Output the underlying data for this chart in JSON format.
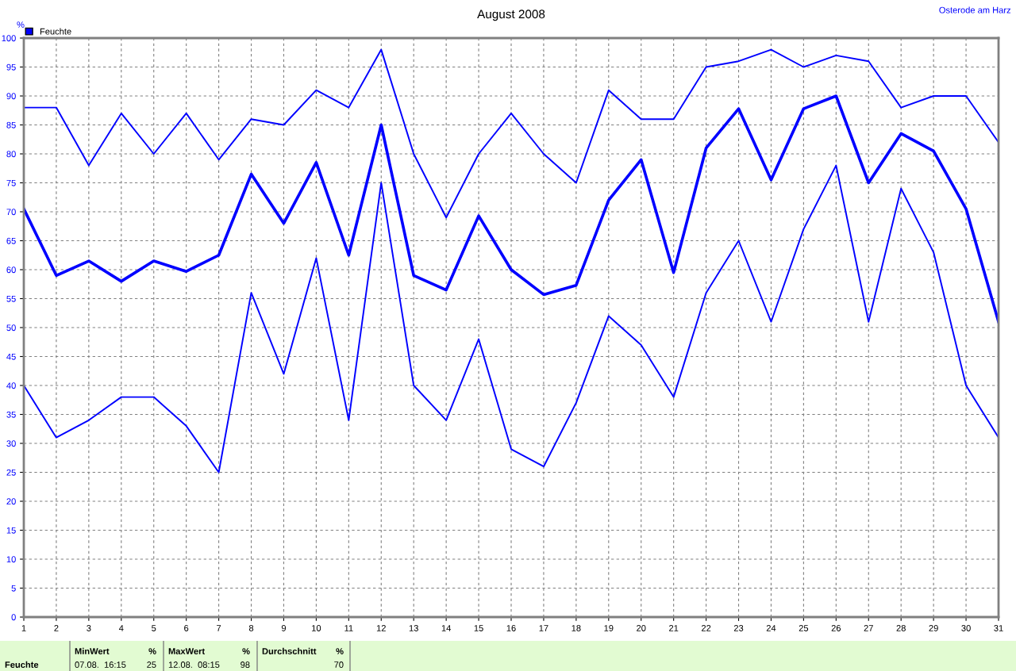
{
  "chart_data": {
    "type": "line",
    "title": "August 2008",
    "subtitle": "Osterode am Harz",
    "ylabel": "%",
    "x": [
      1,
      2,
      3,
      4,
      5,
      6,
      7,
      8,
      9,
      10,
      11,
      12,
      13,
      14,
      15,
      16,
      17,
      18,
      19,
      20,
      21,
      22,
      23,
      24,
      25,
      26,
      27,
      28,
      29,
      30,
      31
    ],
    "series": [
      {
        "color": "#0000ff",
        "values": [
          88,
          88,
          78,
          87,
          80,
          87,
          79,
          86,
          85,
          91,
          88,
          98,
          80,
          69,
          80,
          87,
          80,
          75,
          91,
          86,
          86,
          95,
          96,
          98,
          95,
          97,
          96,
          88,
          90,
          90,
          82
        ]
      },
      {
        "name": "Feuchte",
        "color": "#0000ff",
        "values": [
          70.5,
          59,
          61.5,
          58,
          61.5,
          59.7,
          62.5,
          76.5,
          68,
          78.5,
          62.5,
          85,
          59,
          56.5,
          69.3,
          60,
          55.7,
          57.3,
          72,
          79,
          59.5,
          81,
          87.8,
          75.5,
          87.8,
          90,
          75,
          83.5,
          80.5,
          70.5,
          51
        ]
      },
      {
        "color": "#0000ff",
        "values": [
          40,
          31,
          34,
          38,
          38,
          33,
          25,
          56,
          42,
          62,
          34,
          75,
          40,
          34,
          48,
          29,
          26,
          37,
          52,
          47,
          38,
          56,
          65,
          51,
          67,
          78,
          51,
          74,
          63,
          40,
          31
        ]
      }
    ],
    "xlim": [
      1,
      31
    ],
    "xticks": [
      1,
      2,
      3,
      4,
      5,
      6,
      7,
      8,
      9,
      10,
      11,
      12,
      13,
      14,
      15,
      16,
      17,
      18,
      19,
      20,
      21,
      22,
      23,
      24,
      25,
      26,
      27,
      28,
      29,
      30,
      31
    ],
    "ylim": [
      0,
      100
    ],
    "yticks": [
      0,
      5,
      10,
      15,
      20,
      25,
      30,
      35,
      40,
      45,
      50,
      55,
      60,
      65,
      70,
      75,
      80,
      85,
      90,
      95,
      100
    ],
    "grid": true,
    "legend": "top left",
    "line_style": "solid",
    "marker": "none",
    "annotations": [
      "Feuchte",
      "MinWert",
      "%",
      "07.08.  16:15",
      "25",
      "MaxWert",
      "%",
      "12.08.  08:15",
      "98",
      "Durchschnitt",
      "%",
      "70"
    ]
  }
}
